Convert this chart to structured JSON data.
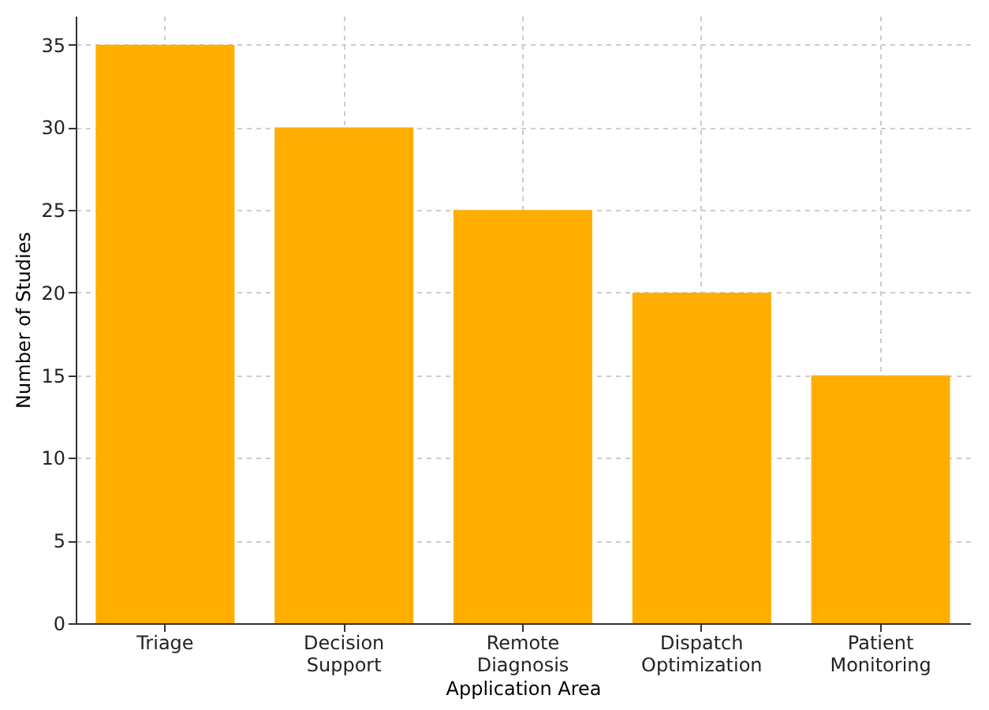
{
  "chart_data": {
    "type": "bar",
    "xlabel": "Application Area",
    "ylabel": "Number of Studies",
    "categories": [
      "Triage",
      "Decision Support",
      "Remote Diagnosis",
      "Dispatch Optimization",
      "Patient Monitoring"
    ],
    "values": [
      35,
      30,
      25,
      20,
      15
    ],
    "color": "#ffae00",
    "ylim": [
      0,
      36.75
    ],
    "yticks": [
      0,
      5,
      10,
      15,
      20,
      25,
      30,
      35
    ],
    "grid": true
  }
}
